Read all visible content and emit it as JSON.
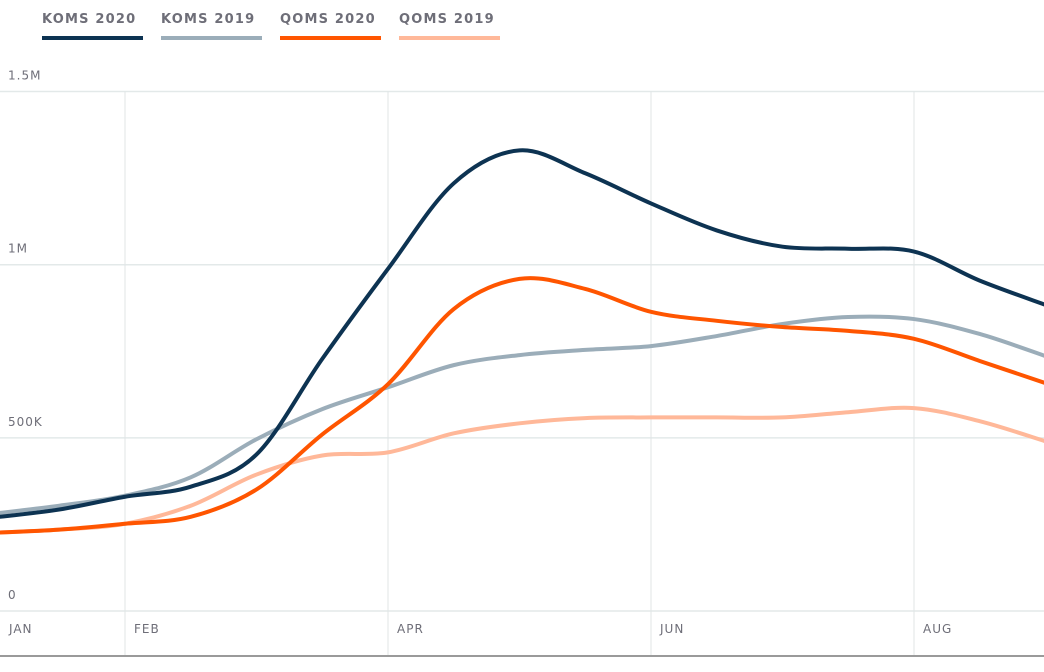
{
  "chart_data": {
    "type": "line",
    "title": "",
    "xlabel": "",
    "ylabel": "",
    "ylim": [
      0,
      1500000
    ],
    "y_ticks": [
      {
        "value": 0,
        "label": "0"
      },
      {
        "value": 500000,
        "label": "500K"
      },
      {
        "value": 1000000,
        "label": "1M"
      },
      {
        "value": 1500000,
        "label": "1.5M"
      }
    ],
    "x_ticks": [
      {
        "value": "Jan 1",
        "label": "JAN"
      },
      {
        "value": "Feb 1",
        "label": "FEB"
      },
      {
        "value": "Apr 1",
        "label": "APR"
      },
      {
        "value": "Jun 1",
        "label": "JUN"
      },
      {
        "value": "Aug 1",
        "label": "AUG"
      }
    ],
    "x": [
      "Jan 1",
      "Jan 15",
      "Feb 1",
      "Feb 15",
      "Mar 1",
      "Mar 15",
      "Apr 1",
      "Apr 15",
      "May 1",
      "May 15",
      "Jun 1",
      "Jun 15",
      "Jul 1",
      "Jul 15",
      "Aug 1",
      "Aug 15",
      "Sep 1"
    ],
    "grid": true,
    "legend": "top-left",
    "series": [
      {
        "name": "KOMS 2020",
        "color": "#0d3352",
        "values": [
          270000,
          293000,
          330000,
          359000,
          452000,
          728000,
          988000,
          1235000,
          1330000,
          1264000,
          1177000,
          1099000,
          1052000,
          1046000,
          1038000,
          954000,
          884000
        ]
      },
      {
        "name": "KOMS 2019",
        "color": "#9badb9",
        "values": [
          281000,
          304000,
          333000,
          386000,
          496000,
          583000,
          646000,
          710000,
          739000,
          754000,
          765000,
          794000,
          829000,
          849000,
          843000,
          800000,
          736000
        ]
      },
      {
        "name": "QOMS 2020",
        "color": "#ff5500",
        "values": [
          226000,
          235000,
          252000,
          272000,
          351000,
          510000,
          655000,
          872000,
          959000,
          930000,
          864000,
          838000,
          820000,
          809000,
          786000,
          722000,
          658000
        ]
      },
      {
        "name": "QOMS 2019",
        "color": "#ffb899",
        "values": [
          226000,
          235000,
          252000,
          304000,
          394000,
          449000,
          458000,
          513000,
          542000,
          557000,
          559000,
          559000,
          559000,
          574000,
          586000,
          548000,
          490000
        ]
      }
    ]
  }
}
